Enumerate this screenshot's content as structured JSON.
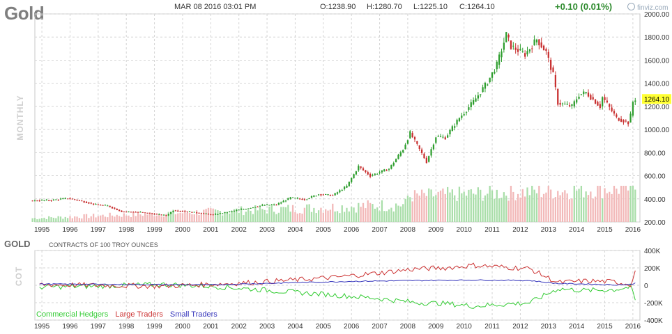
{
  "header": {
    "symbol": "Gold",
    "datetime": "MAR 08 2016 03:01 PM",
    "open": "O:1238.90",
    "high": "H:1280.70",
    "low": "L:1225.10",
    "close": "C:1264.10",
    "change": "+0.10 (0.01%)",
    "brand": "finviz.com"
  },
  "period_label": "MONTHLY",
  "last_price_label": "1264.10",
  "colors": {
    "up": "#2e9e2e",
    "down": "#c83030",
    "volume_up": "#a9dea9",
    "volume_down": "#f2b8b8",
    "commercial": "#33cc33",
    "large": "#cc3333",
    "small": "#3333bb",
    "price_tag": "#ffff33"
  },
  "cot": {
    "symbol": "GOLD",
    "subtitle": "CONTRACTS OF 100 TROY OUNCES",
    "label": "COT",
    "legend": [
      "Commercial Hedgers",
      "Large Traders",
      "Small Traders"
    ]
  },
  "chart_data": [
    {
      "type": "candlestick",
      "title": "Gold",
      "period": "MONTHLY",
      "x_tick_labels": [
        "1995",
        "1996",
        "1997",
        "1998",
        "1999",
        "2000",
        "2001",
        "2002",
        "2003",
        "2004",
        "2005",
        "2006",
        "2007",
        "2008",
        "2009",
        "2010",
        "2011",
        "2012",
        "2013",
        "2014",
        "2015",
        "2016"
      ],
      "y_tick_labels": [
        "2000.00",
        "1800.00",
        "1600.00",
        "1400.00",
        "1200.00",
        "1000.00",
        "800.00",
        "600.00",
        "400.00",
        "200.00"
      ],
      "ylim": [
        200,
        2000
      ],
      "grid": true,
      "last_price": 1264.1,
      "price_path": [
        [
          "1994-10",
          385
        ],
        [
          "1995-06",
          388
        ],
        [
          "1996-01",
          405
        ],
        [
          "1996-06",
          385
        ],
        [
          "1997-01",
          350
        ],
        [
          "1997-06",
          340
        ],
        [
          "1997-12",
          290
        ],
        [
          "1998-08",
          285
        ],
        [
          "1999-07",
          256
        ],
        [
          "1999-10",
          300
        ],
        [
          "2000-06",
          285
        ],
        [
          "2001-03",
          262
        ],
        [
          "2001-09",
          285
        ],
        [
          "2002-06",
          320
        ],
        [
          "2002-12",
          345
        ],
        [
          "2003-06",
          350
        ],
        [
          "2003-12",
          410
        ],
        [
          "2004-06",
          395
        ],
        [
          "2004-12",
          440
        ],
        [
          "2005-06",
          430
        ],
        [
          "2005-12",
          510
        ],
        [
          "2006-05",
          680
        ],
        [
          "2006-10",
          600
        ],
        [
          "2007-06",
          660
        ],
        [
          "2007-12",
          830
        ],
        [
          "2008-03",
          970
        ],
        [
          "2008-10",
          720
        ],
        [
          "2009-02",
          940
        ],
        [
          "2009-06",
          930
        ],
        [
          "2009-12",
          1100
        ],
        [
          "2010-06",
          1240
        ],
        [
          "2010-12",
          1410
        ],
        [
          "2011-04",
          1560
        ],
        [
          "2011-08",
          1820
        ],
        [
          "2011-10",
          1720
        ],
        [
          "2012-04",
          1650
        ],
        [
          "2012-09",
          1780
        ],
        [
          "2013-01",
          1670
        ],
        [
          "2013-04",
          1470
        ],
        [
          "2013-06",
          1230
        ],
        [
          "2013-12",
          1200
        ],
        [
          "2014-03",
          1300
        ],
        [
          "2014-06",
          1320
        ],
        [
          "2014-12",
          1200
        ],
        [
          "2015-01",
          1280
        ],
        [
          "2015-07",
          1100
        ],
        [
          "2015-12",
          1060
        ],
        [
          "2016-01",
          1120
        ],
        [
          "2016-02",
          1240
        ],
        [
          "2016-03",
          1264.1
        ]
      ],
      "volume": "unlabeled bars below price, relative only"
    },
    {
      "type": "line",
      "title": "GOLD",
      "subtitle": "CONTRACTS OF 100 TROY OUNCES",
      "ylabel": "COT",
      "y_tick_labels": [
        "400K",
        "200K",
        "0",
        "-200K",
        "-400K"
      ],
      "ylim": [
        -400000,
        400000
      ],
      "x_tick_labels": [
        "1995",
        "1996",
        "1997",
        "1998",
        "1999",
        "2000",
        "2001",
        "2002",
        "2003",
        "2004",
        "2005",
        "2006",
        "2007",
        "2008",
        "2009",
        "2010",
        "2011",
        "2012",
        "2013",
        "2014",
        "2015",
        "2016"
      ],
      "series": [
        {
          "name": "Commercial Hedgers",
          "color": "#33cc33",
          "points": [
            [
              "1995-01",
              -20000
            ],
            [
              "1997-01",
              -10000
            ],
            [
              "1999-06",
              10000
            ],
            [
              "2001-01",
              -10000
            ],
            [
              "2002-06",
              -40000
            ],
            [
              "2004-01",
              -80000
            ],
            [
              "2005-06",
              -110000
            ],
            [
              "2007-01",
              -150000
            ],
            [
              "2008-06",
              -200000
            ],
            [
              "2009-06",
              -210000
            ],
            [
              "2010-06",
              -240000
            ],
            [
              "2011-06",
              -220000
            ],
            [
              "2012-06",
              -200000
            ],
            [
              "2013-06",
              -40000
            ],
            [
              "2014-06",
              -60000
            ],
            [
              "2015-06",
              -50000
            ],
            [
              "2016-01",
              -20000
            ],
            [
              "2016-03",
              -170000
            ]
          ]
        },
        {
          "name": "Large Traders",
          "color": "#cc3333",
          "points": [
            [
              "1995-01",
              10000
            ],
            [
              "1997-01",
              0
            ],
            [
              "1999-06",
              -10000
            ],
            [
              "2001-01",
              10000
            ],
            [
              "2002-06",
              30000
            ],
            [
              "2004-01",
              60000
            ],
            [
              "2005-06",
              90000
            ],
            [
              "2007-01",
              140000
            ],
            [
              "2008-06",
              190000
            ],
            [
              "2009-06",
              200000
            ],
            [
              "2010-06",
              230000
            ],
            [
              "2011-06",
              210000
            ],
            [
              "2012-06",
              190000
            ],
            [
              "2013-06",
              30000
            ],
            [
              "2014-06",
              50000
            ],
            [
              "2015-06",
              40000
            ],
            [
              "2016-01",
              10000
            ],
            [
              "2016-03",
              160000
            ]
          ]
        },
        {
          "name": "Small Traders",
          "color": "#3333bb",
          "points": [
            [
              "1995-01",
              15000
            ],
            [
              "1998-01",
              10000
            ],
            [
              "2001-01",
              5000
            ],
            [
              "2004-01",
              30000
            ],
            [
              "2006-01",
              45000
            ],
            [
              "2008-06",
              55000
            ],
            [
              "2010-06",
              60000
            ],
            [
              "2012-06",
              55000
            ],
            [
              "2013-06",
              20000
            ],
            [
              "2014-06",
              15000
            ],
            [
              "2015-06",
              5000
            ],
            [
              "2016-01",
              10000
            ],
            [
              "2016-03",
              25000
            ]
          ]
        }
      ]
    }
  ]
}
